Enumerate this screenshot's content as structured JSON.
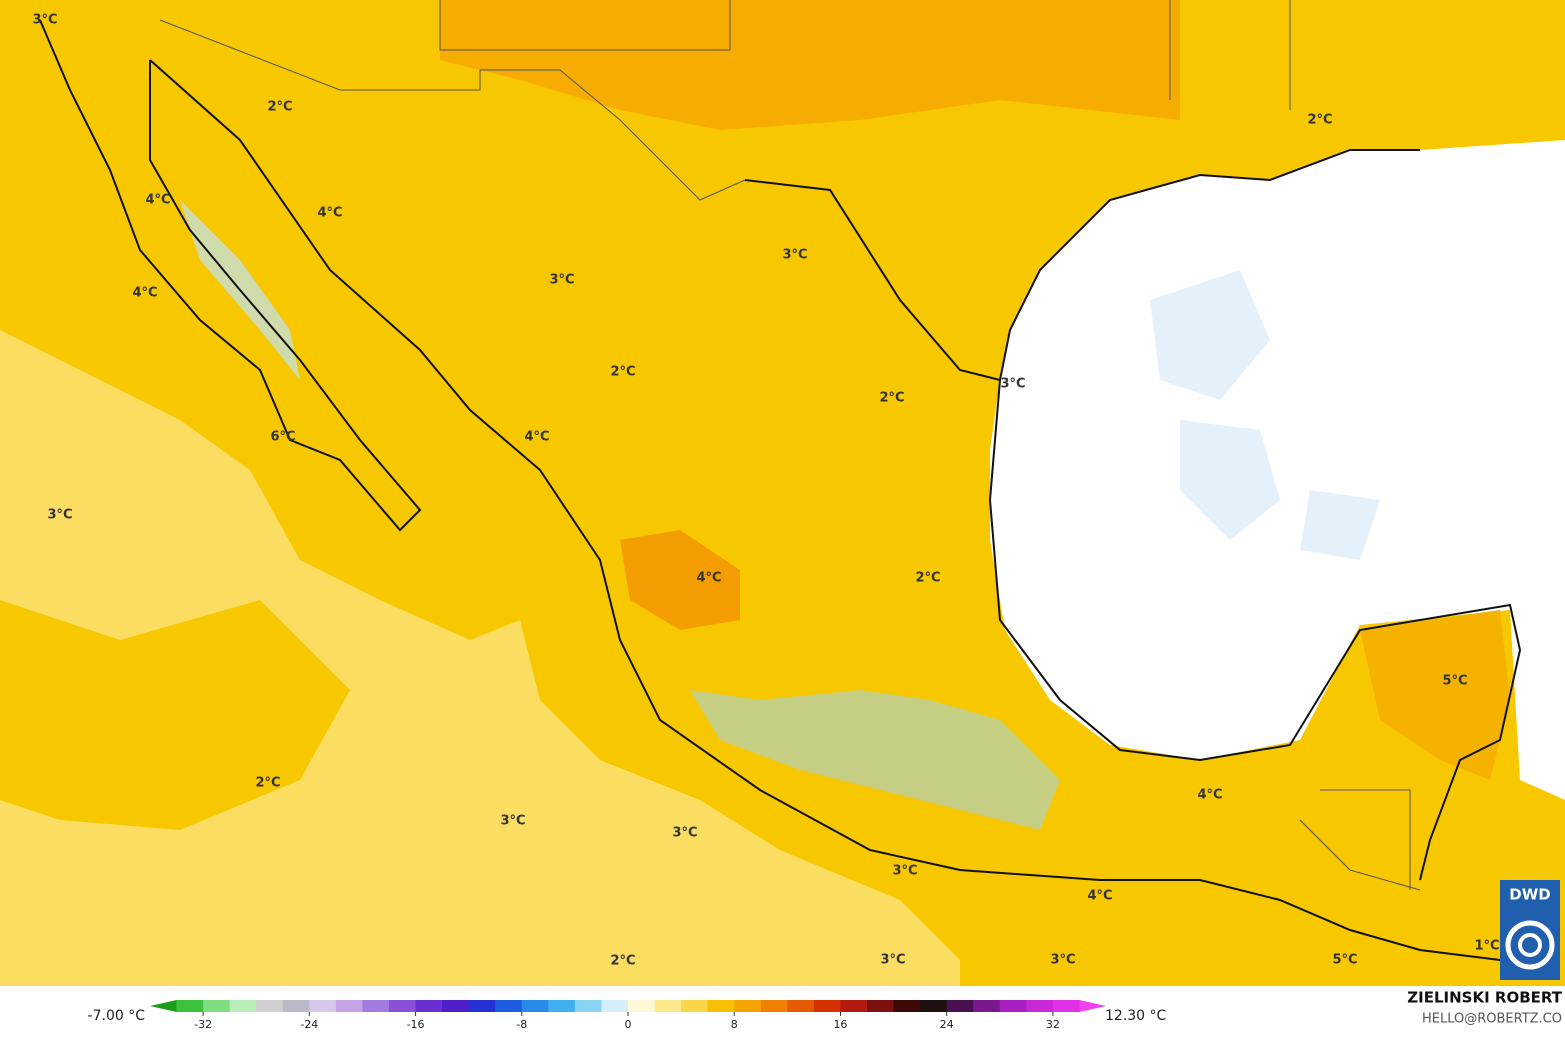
{
  "map": {
    "labels": [
      "3°C",
      "2°C",
      "4°C",
      "4°C",
      "4°C",
      "3°C",
      "3°C",
      "2°C",
      "2°C",
      "2°C",
      "3°C",
      "4°C",
      "6°C",
      "3°C",
      "4°C",
      "2°C",
      "5°C",
      "2°C",
      "3°C",
      "3°C",
      "4°C",
      "3°C",
      "4°C",
      "2°C",
      "3°C",
      "3°C",
      "5°C",
      "1°C"
    ]
  },
  "colorbar": {
    "lim": [
      -36,
      36
    ],
    "ticks": [
      -32,
      -24,
      -16,
      -8,
      0,
      8,
      16,
      24,
      32
    ],
    "colors": [
      "#1a9e1a",
      "#3cc23c",
      "#7fdc7f",
      "#b8ecb8",
      "#d0d0d0",
      "#b9b9c9",
      "#d6c8e8",
      "#c3a3e6",
      "#a27be0",
      "#8a50d8",
      "#6a2fd0",
      "#4c1fc9",
      "#2432d4",
      "#1f5de0",
      "#2a8ae8",
      "#3fb0ef",
      "#8ad3f3",
      "#d6eef9",
      "#fff8d6",
      "#fde98c",
      "#fbd54a",
      "#f8c000",
      "#f5a300",
      "#f08000",
      "#e55a00",
      "#d43000",
      "#b51a10",
      "#7e1010",
      "#3d0808",
      "#1c1010",
      "#4a1050",
      "#7a1890",
      "#a820c0",
      "#c828d8",
      "#e030e8",
      "#f040f0"
    ]
  },
  "min_label": "-7.00 °C",
  "max_label": "12.30 °C",
  "credit": {
    "author": "ZIELINSKI ROBERT",
    "email": "HELLO@ROBERTZ.CO"
  },
  "logo": "DWD"
}
